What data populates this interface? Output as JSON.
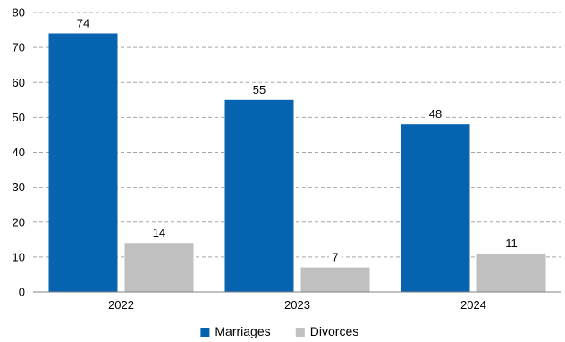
{
  "chart_data": {
    "type": "bar",
    "categories": [
      "2022",
      "2023",
      "2024"
    ],
    "series": [
      {
        "name": "Marriages",
        "values": [
          74,
          55,
          48
        ],
        "color": "#0563b0"
      },
      {
        "name": "Divorces",
        "values": [
          14,
          7,
          11
        ],
        "color": "#c0c0c0"
      }
    ],
    "title": "",
    "xlabel": "",
    "ylabel": "",
    "ylim": [
      0,
      80
    ],
    "yticks": [
      0,
      10,
      20,
      30,
      40,
      50,
      60,
      70,
      80
    ],
    "grid": true,
    "grid_style": "dashed",
    "legend_position": "bottom",
    "data_labels": true
  }
}
